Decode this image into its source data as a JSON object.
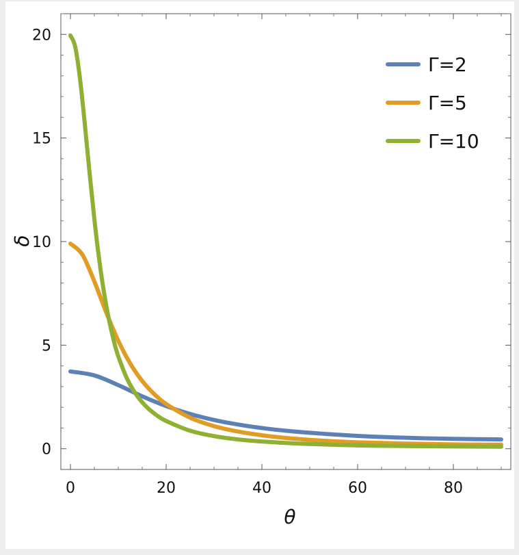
{
  "chart_data": {
    "type": "line",
    "xlabel": "θ",
    "ylabel": "δ",
    "xlim": [
      -2,
      92
    ],
    "ylim": [
      -1,
      21
    ],
    "x_ticks": [
      0,
      20,
      40,
      60,
      80
    ],
    "y_ticks": [
      0,
      5,
      10,
      15,
      20
    ],
    "grid": false,
    "legend_position": "top-right",
    "series": [
      {
        "name": "Γ=2",
        "color": "#5e81b5",
        "x": [
          0,
          5,
          10,
          15,
          20,
          25,
          30,
          35,
          40,
          45,
          50,
          55,
          60,
          65,
          70,
          75,
          80,
          85,
          90
        ],
        "values": [
          3.73,
          3.54,
          3.07,
          2.53,
          2.06,
          1.68,
          1.39,
          1.17,
          1.0,
          0.87,
          0.77,
          0.69,
          0.62,
          0.57,
          0.53,
          0.5,
          0.48,
          0.46,
          0.45
        ]
      },
      {
        "name": "Γ=5",
        "color": "#e19c24",
        "x": [
          0,
          2.5,
          5,
          7.5,
          10,
          12.5,
          15,
          17.5,
          20,
          25,
          30,
          35,
          40,
          45,
          50,
          55,
          60,
          65,
          70,
          75,
          80,
          85,
          90
        ],
        "values": [
          9.9,
          9.37,
          8.07,
          6.57,
          5.21,
          4.11,
          3.27,
          2.64,
          2.16,
          1.5,
          1.09,
          0.83,
          0.65,
          0.52,
          0.43,
          0.36,
          0.31,
          0.28,
          0.25,
          0.23,
          0.21,
          0.2,
          0.2
        ]
      },
      {
        "name": "Γ=10",
        "color": "#8fb032",
        "x": [
          0,
          1,
          2,
          3,
          4,
          5,
          6,
          7,
          8,
          9,
          10,
          12,
          14,
          16,
          18,
          20,
          25,
          30,
          35,
          40,
          45,
          50,
          60,
          70,
          80,
          90
        ],
        "values": [
          19.95,
          19.4,
          17.86,
          15.68,
          13.31,
          11.08,
          9.15,
          7.56,
          6.29,
          5.27,
          4.46,
          3.3,
          2.53,
          2.0,
          1.62,
          1.34,
          0.87,
          0.61,
          0.45,
          0.35,
          0.28,
          0.23,
          0.16,
          0.13,
          0.11,
          0.1
        ]
      }
    ]
  }
}
